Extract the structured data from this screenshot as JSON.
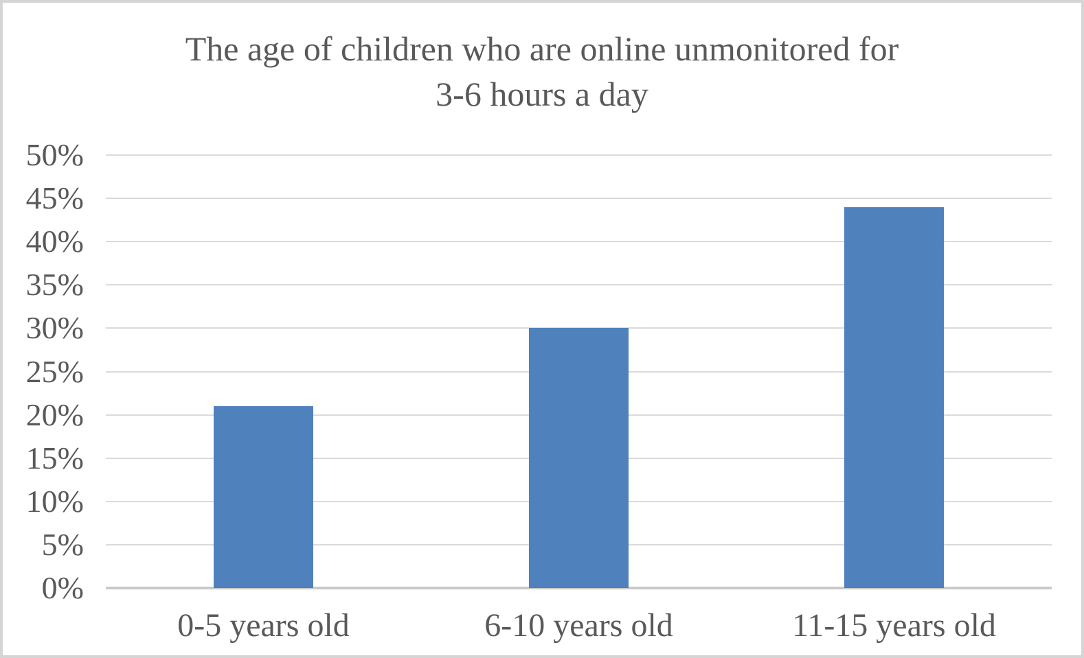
{
  "chart_data": {
    "type": "bar",
    "title": "The age of children who are online unmonitored for 3-6 hours a day",
    "title_lines": [
      "The age of children who are online unmonitored for",
      "3-6 hours a day"
    ],
    "categories": [
      "0-5 years old",
      "6-10 years old",
      "11-15 years old"
    ],
    "values": [
      21,
      30,
      44
    ],
    "unit": "%",
    "xlabel": "",
    "ylabel": "",
    "ylim": [
      0,
      50
    ],
    "ytick_step": 5,
    "ytick_labels": [
      "0%",
      "5%",
      "10%",
      "15%",
      "20%",
      "25%",
      "30%",
      "35%",
      "40%",
      "45%",
      "50%"
    ],
    "grid": true,
    "legend": false,
    "series_color": "#4f81bd"
  },
  "colors": {
    "bar": "#4f81bd",
    "gridline": "#dadada",
    "axis_line": "#c9c9c9",
    "text": "#595959",
    "background": "#ffffff",
    "frame_border": "#d5d5d5"
  }
}
